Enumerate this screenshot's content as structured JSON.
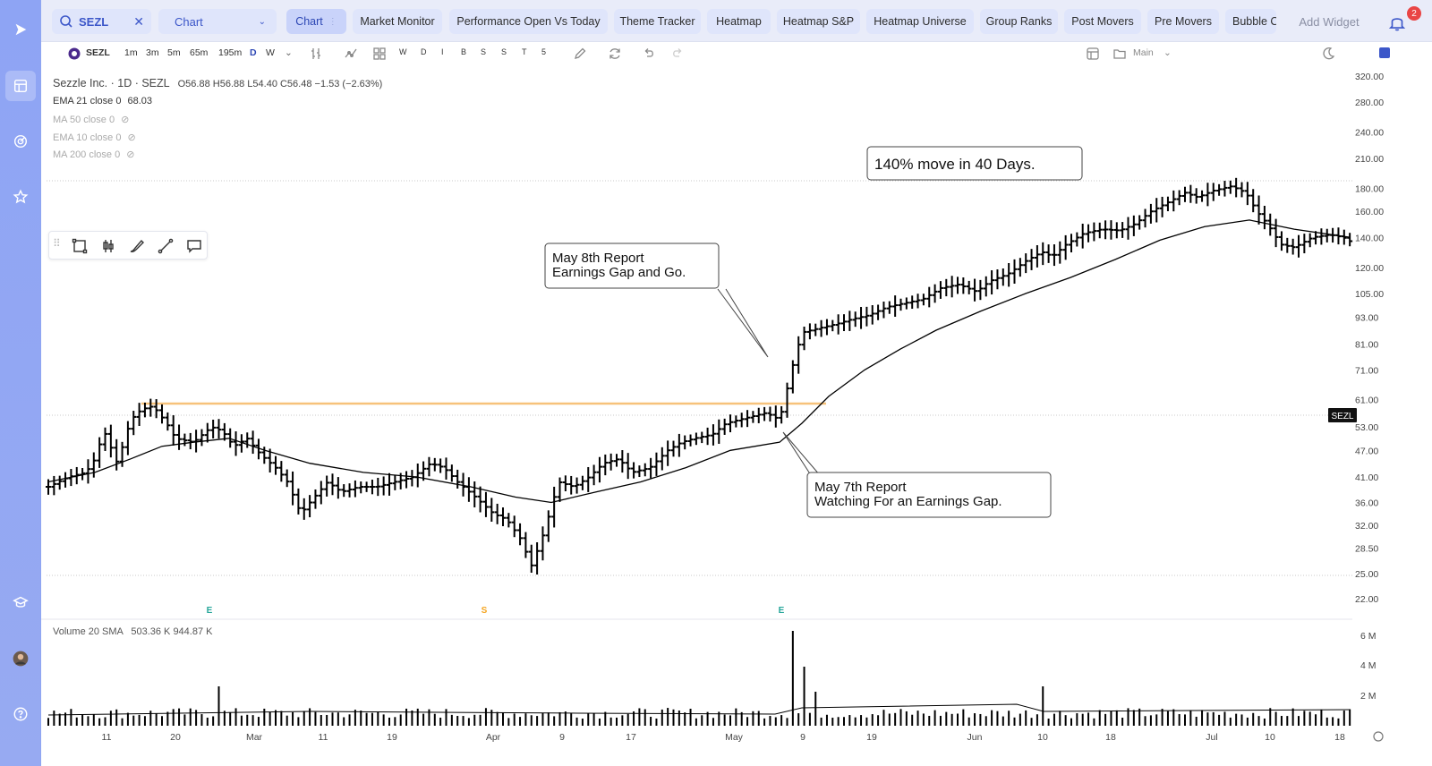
{
  "search": {
    "value": "SEZL"
  },
  "chart_selector": {
    "label": "Chart"
  },
  "tabs": [
    "Chart",
    "Market Monitor",
    "Performance Open Vs Today",
    "Theme Tracker",
    "Heatmap",
    "Heatmap S&P",
    "Heatmap Universe",
    "Group Ranks",
    "Post Movers",
    "Pre Movers",
    "Bubble C"
  ],
  "add_widget": "Add Widget",
  "notifications": "2",
  "toolbar": {
    "symbol": "SEZL",
    "timeframes": [
      "1m",
      "3m",
      "5m",
      "65m",
      "195m",
      "D",
      "W"
    ],
    "active_timeframe": "D",
    "periods": [
      "W",
      "D",
      "I",
      "B",
      "S",
      "S",
      "T",
      "5"
    ],
    "layout": "Main"
  },
  "legend": {
    "title": "Sezzle Inc. · 1D · SEZL",
    "ohlc": "O56.88  H56.88  L54.40  C56.48  −1.53 (−2.63%)",
    "ema21": "EMA 21 close 0",
    "ema21_value": "68.03",
    "ma50": "MA 50 close 0",
    "ema10": "EMA 10 close 0",
    "ma200": "MA 200 close 0",
    "volume": "Volume 20 SMA",
    "volume_values": "503.36 K  944.87 K"
  },
  "price_axis": [
    "320.00",
    "280.00",
    "240.00",
    "210.00",
    "180.00",
    "160.00",
    "140.00",
    "120.00",
    "105.00",
    "93.00",
    "81.00",
    "71.00",
    "61.00",
    "53.00",
    "47.00",
    "41.00",
    "36.00",
    "32.00",
    "28.50",
    "25.00",
    "22.00"
  ],
  "volume_axis": [
    "6 M",
    "4 M",
    "2 M"
  ],
  "time_axis": [
    "11",
    "20",
    "Mar",
    "11",
    "19",
    "Apr",
    "9",
    "17",
    "May",
    "9",
    "19",
    "Jun",
    "10",
    "18",
    "Jul",
    "10",
    "18"
  ],
  "symbol_tag": "SEZL",
  "event_markers": [
    "E",
    "S",
    "E"
  ],
  "annotations": {
    "may8": [
      "May 8th Report",
      "Earnings Gap and Go."
    ],
    "may7": [
      "May 7th Report",
      "Watching For an Earnings Gap."
    ],
    "move": "140% move in 40 Days."
  },
  "colors": {
    "accent": "#3c57c9",
    "sidebar": "#8ea4f4",
    "breakout_line": "#f7c27a",
    "earnings_marker": "#26a69a",
    "split_marker": "#f5a623"
  }
}
